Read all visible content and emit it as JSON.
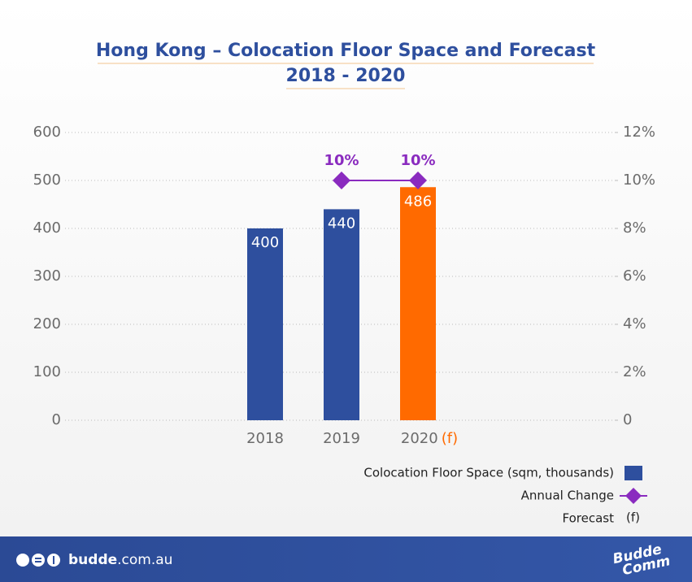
{
  "chart_data": {
    "type": "bar",
    "title": "Hong Kong – Colocation Floor Space and Forecast",
    "subtitle": "2018 - 2020",
    "categories": [
      "2018",
      "2019",
      "2020"
    ],
    "forecast_marker": "(f)",
    "forecast_label": "Forecast",
    "forecast_color": "#ff6a00",
    "series": [
      {
        "name": "Colocation Floor Space (sqm, thousands)",
        "color": "#2e4f9e",
        "bar_colors": [
          "#2e4f9e",
          "#2e4f9e",
          "#ff6a00"
        ],
        "values": [
          400,
          440,
          486
        ]
      },
      {
        "name": "Annual Change",
        "type": "line",
        "axis": "y2",
        "color": "#8a2bbf",
        "values": [
          null,
          10,
          10
        ],
        "value_labels": [
          null,
          "10%",
          "10%"
        ]
      }
    ],
    "ylim": [
      0,
      600
    ],
    "yticks": [
      0,
      100,
      200,
      300,
      400,
      500,
      600
    ],
    "y2lim": [
      0,
      12
    ],
    "y2ticks": [
      0,
      {
        "value": 2,
        "label": "2%"
      },
      {
        "value": 4,
        "label": "4%"
      },
      {
        "value": 6,
        "label": "6%"
      },
      {
        "value": 8,
        "label": "8%"
      },
      {
        "value": 10,
        "label": "10%"
      },
      {
        "value": 12,
        "label": "12%"
      }
    ],
    "grid": true
  },
  "footer": {
    "site_name": "budde",
    "site_domain": ".com.au",
    "logo_top": "Budde",
    "logo_bottom": "Comm"
  }
}
